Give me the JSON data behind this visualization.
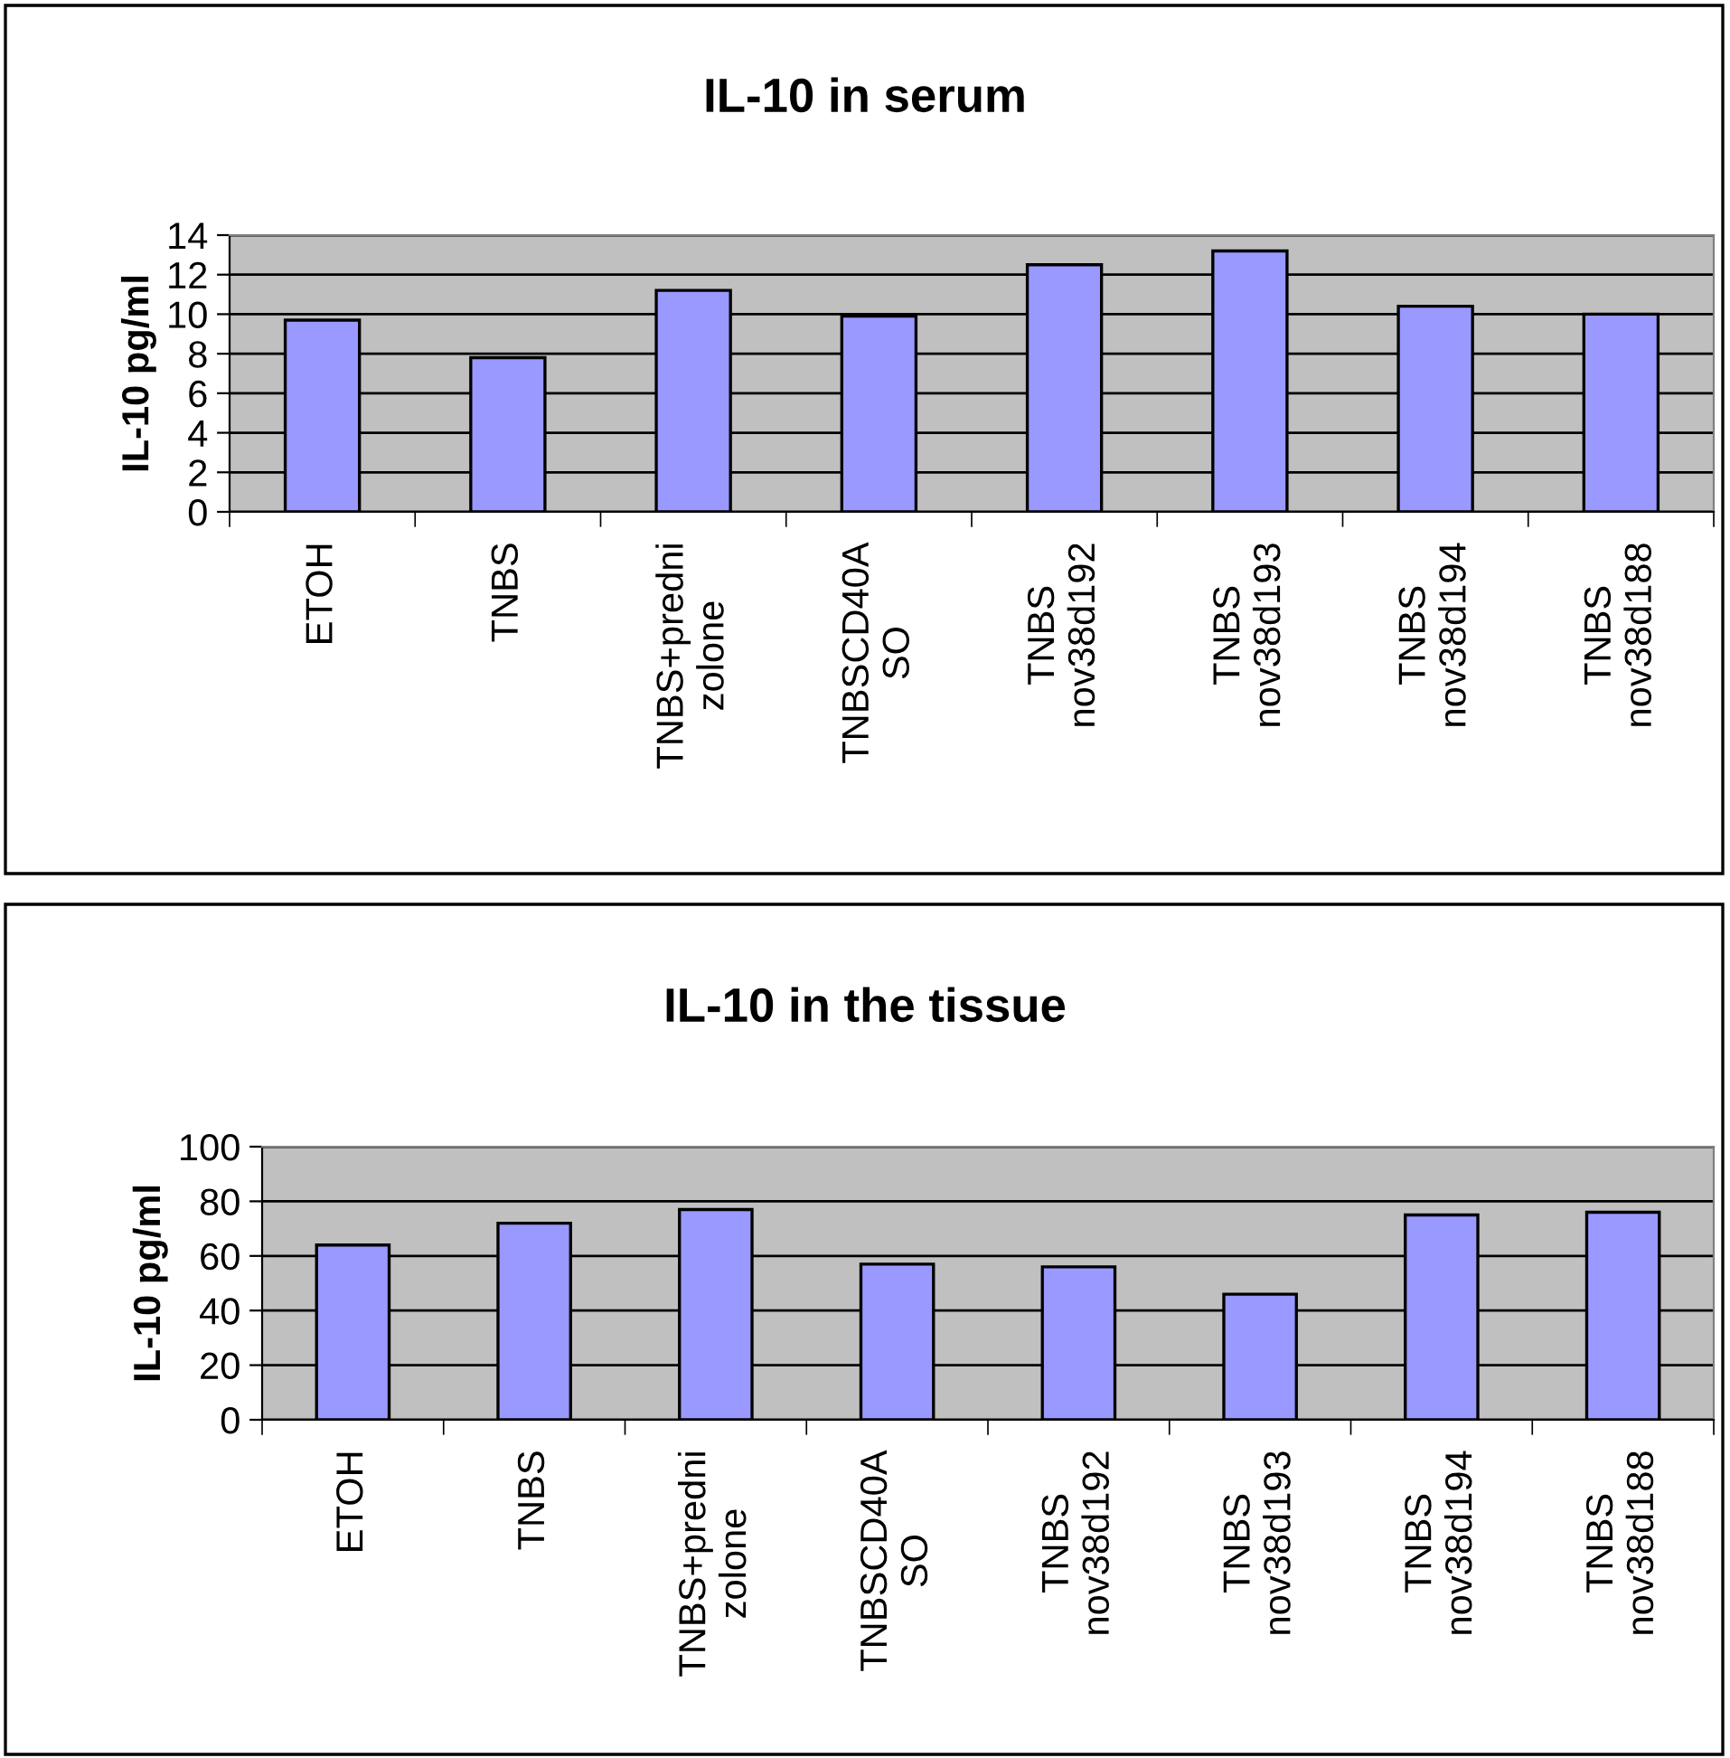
{
  "chart_data": [
    {
      "type": "bar",
      "title": "IL-10 in serum",
      "ylabel": "IL-10 pg/ml",
      "categories": [
        "ETOH",
        "TNBS",
        "TNBS+predni\nzolone",
        "TNBSCD40A\nSO",
        "TNBS\nnov38d192",
        "TNBS\nnov38d193",
        "TNBS\nnov38d194",
        "TNBS\nnov38d188"
      ],
      "values": [
        9.7,
        7.8,
        11.2,
        9.9,
        12.5,
        13.2,
        10.4,
        10.0
      ],
      "color": "#9999ff",
      "ylim": [
        0,
        14
      ],
      "yticks": [
        0,
        2,
        4,
        6,
        8,
        10,
        12,
        14
      ],
      "grid": "y",
      "legend": false
    },
    {
      "type": "bar",
      "title": "IL-10 in the tissue",
      "ylabel": "IL-10 pg/ml",
      "categories": [
        "ETOH",
        "TNBS",
        "TNBS+predni\nzolone",
        "TNBSCD40A\nSO",
        "TNBS\nnov38d192",
        "TNBS\nnov38d193",
        "TNBS\nnov38d194",
        "TNBS\nnov38d188"
      ],
      "values": [
        64,
        72,
        77,
        57,
        56,
        46,
        75,
        76
      ],
      "color": "#9999ff",
      "ylim": [
        0,
        100
      ],
      "yticks": [
        0,
        20,
        40,
        60,
        80,
        100
      ],
      "grid": "y",
      "legend": false
    }
  ]
}
